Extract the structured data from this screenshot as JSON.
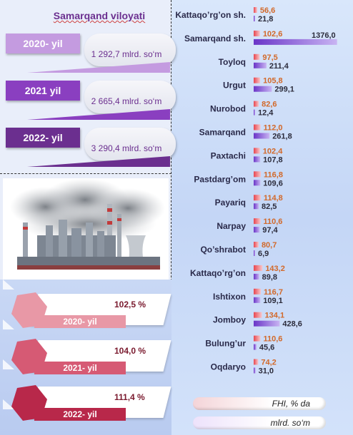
{
  "region_title": "Samarqand viloyati",
  "years": [
    {
      "label": "2020- yil",
      "value": "1 292,7 mlrd. so‘m"
    },
    {
      "label": "2021 yil",
      "value": "2 665,4 mlrd. so‘m"
    },
    {
      "label": "2022- yil",
      "value": "3 290,4 mlrd. so‘m"
    }
  ],
  "growth": [
    {
      "label": "2020- yil",
      "value": "102,5 %"
    },
    {
      "label": "2021- yil",
      "value": "104,0 %"
    },
    {
      "label": "2022- yil",
      "value": "111,4 %"
    }
  ],
  "colors": {
    "tag_light": "#c49be0",
    "tag_mid": "#8a3fc0",
    "tag_dark": "#6b2f8f",
    "growth_light": "#e898a6",
    "growth_mid": "#d65a74",
    "growth_dark": "#b8284a",
    "fhi_bar": "#e8464f",
    "fhi_text": "#d2692a",
    "value_bar": "#6a35c8",
    "value_text": "#2c2c3c"
  },
  "chart_data": {
    "type": "bar",
    "orientation": "horizontal",
    "categories": [
      "Kattaqo’rg’on sh.",
      "Samarqand sh.",
      "Toyloq",
      "Urgut",
      "Nurobod",
      "Samarqand",
      "Paxtachi",
      "Pastdarg’om",
      "Payariq",
      "Narpay",
      "Qo’shrabot",
      "Kattaqo’rg’on",
      "Ishtixon",
      "Jomboy",
      "Bulung’ur",
      "Oqdaryo"
    ],
    "series": [
      {
        "name": "FHI, % da",
        "values": [
          56.6,
          102.6,
          97.5,
          105.8,
          82.6,
          112.0,
          102.4,
          116.8,
          114.8,
          110.6,
          80.7,
          143.2,
          116.7,
          134.1,
          110.6,
          74.2
        ],
        "labels": [
          "56,6",
          "102,6",
          "97,5",
          "105,8",
          "82,6",
          "112,0",
          "102,4",
          "116,8",
          "114,8",
          "110,6",
          "80,7",
          "143,2",
          "116,7",
          "134,1",
          "110,6",
          "74,2"
        ]
      },
      {
        "name": "mlrd. so‘m",
        "values": [
          21.8,
          1376.0,
          211.4,
          299.1,
          12.4,
          261.8,
          107.8,
          109.6,
          82.5,
          97.4,
          6.9,
          89.8,
          109.1,
          428.6,
          45.6,
          31.0
        ],
        "labels": [
          "21,8",
          "1376,0",
          "211,4",
          "299,1",
          "12,4",
          "261,8",
          "107,8",
          "109,6",
          "82,5",
          "97,4",
          "6,9",
          "89,8",
          "109,1",
          "428,6",
          "45,6",
          "31,0"
        ]
      }
    ],
    "legend": [
      "FHI, % da",
      "mlrd. so‘m"
    ]
  }
}
